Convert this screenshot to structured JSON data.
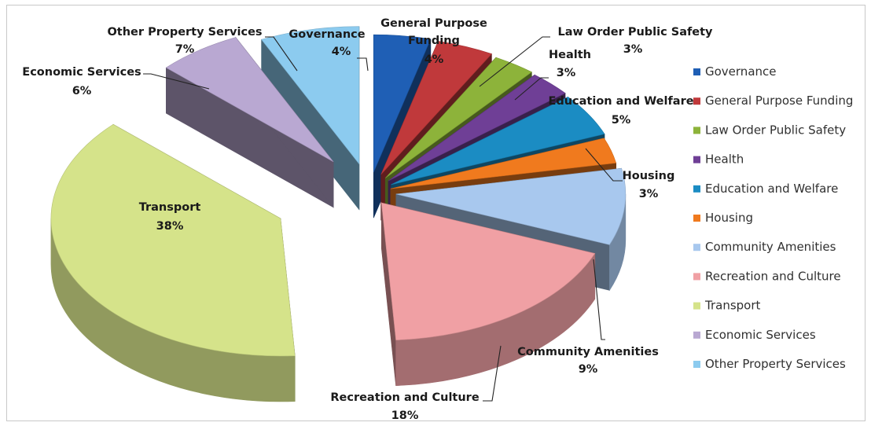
{
  "chart_data": {
    "type": "pie",
    "style": "exploded 3D pie",
    "legend_position": "right",
    "categories": [
      "Governance",
      "General Purpose Funding",
      "Law Order Public Safety",
      "Health",
      "Education and Welfare",
      "Housing",
      "Community Amenities",
      "Recreation and Culture",
      "Transport",
      "Economic Services",
      "Other Property Services"
    ],
    "values": [
      4,
      4,
      3,
      3,
      5,
      3,
      9,
      18,
      38,
      6,
      7
    ],
    "labels": [
      "4%",
      "4%",
      "3%",
      "3%",
      "5%",
      "3%",
      "9%",
      "18%",
      "38%",
      "6%",
      "7%"
    ],
    "callout_names": [
      "Governance",
      "General Purpose Funding",
      "Law Order Public Safety",
      "Health",
      "Education and Welfare",
      "Housing",
      "Community Amenities",
      "Recreation and Culture",
      "Transport",
      "Economic Services",
      "Other Property Services"
    ],
    "legend": [
      "Governance",
      "General Purpose Funding",
      "Law Order Public Safety",
      "Health",
      "Education and Welfare",
      "Housing",
      "Community Amenities",
      "Recreation and Culture",
      "Transport",
      "Economic Services",
      "Other Property Services"
    ],
    "colors": [
      "#1F5FB5",
      "#C0393B",
      "#8DB33A",
      "#6F3F96",
      "#1B8CC3",
      "#F07A1E",
      "#A8C8EE",
      "#F0A0A4",
      "#D5E38A",
      "#B9A8D2",
      "#8CCBEF"
    ]
  }
}
